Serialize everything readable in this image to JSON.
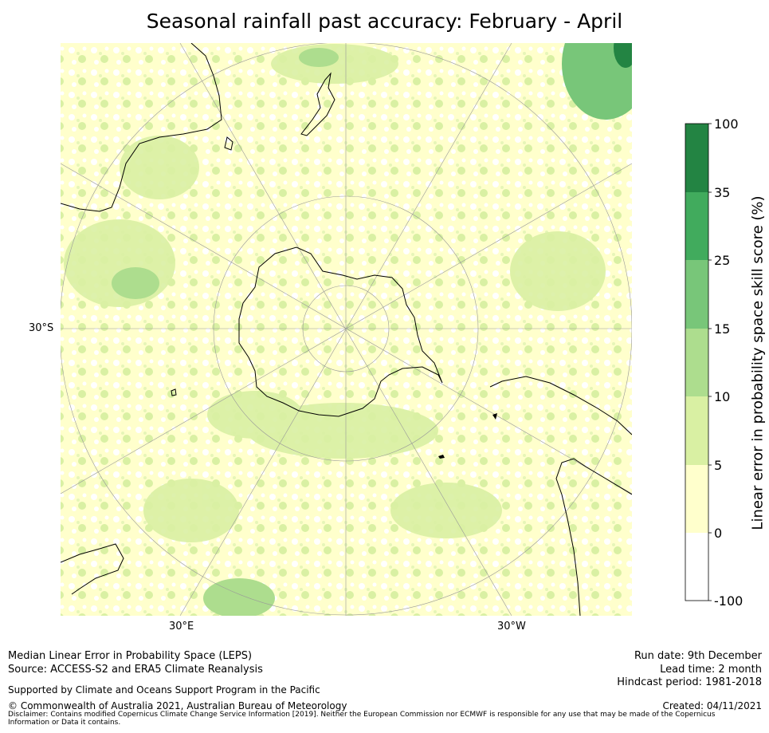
{
  "title": "Seasonal rainfall past accuracy: February - April",
  "map": {
    "projection": "South polar stereographic",
    "lat_label_left": "30°S",
    "lon_label_1": "30°E",
    "lon_label_2": "30°W",
    "features": [
      "antarctica-coastline",
      "australia-coastline",
      "new-zealand-coastline",
      "south-america-coastline",
      "africa-coastline",
      "falkland-islands"
    ],
    "colors": {
      "ocean_low": "#ffffcc",
      "ocean_mid": "#d9f0a3",
      "land_skill_high": "#238443"
    }
  },
  "colorbar": {
    "title": "Linear error in probability space skill score (%)",
    "ticks": [
      "100",
      "35",
      "25",
      "15",
      "10",
      "5",
      "0",
      "-100"
    ],
    "bins": [
      {
        "range": "35 to 100",
        "color": "#238443"
      },
      {
        "range": "25 to 35",
        "color": "#41ab5d"
      },
      {
        "range": "15 to 25",
        "color": "#78c679"
      },
      {
        "range": "10 to 15",
        "color": "#addd8e"
      },
      {
        "range": "5 to 10",
        "color": "#d9f0a3"
      },
      {
        "range": "0 to 5",
        "color": "#ffffcc"
      },
      {
        "range": "-100 to 0",
        "color": "#ffffff"
      }
    ]
  },
  "footer": {
    "line1": "Median Linear Error in Probability Space (LEPS)",
    "line2": "Source: ACCESS-S2 and ERA5 Climate Reanalysis",
    "line3": "Supported by Climate and Oceans Support Program in the Pacific",
    "line4": "© Commonwealth of Australia 2021, Australian Bureau of Meteorology",
    "run_date": "Run date: 9th December",
    "lead_time": "Lead time: 2 month",
    "hindcast": "Hindcast period: 1981-2018",
    "created": "Created: 04/11/2021",
    "disclaimer": "Disclaimer: Contains modified Copernicus Climate Change Service Information [2019]. Neither the European Commission nor ECMWF is responsible for any use that may be made of the Copernicus Information or Data it contains."
  }
}
